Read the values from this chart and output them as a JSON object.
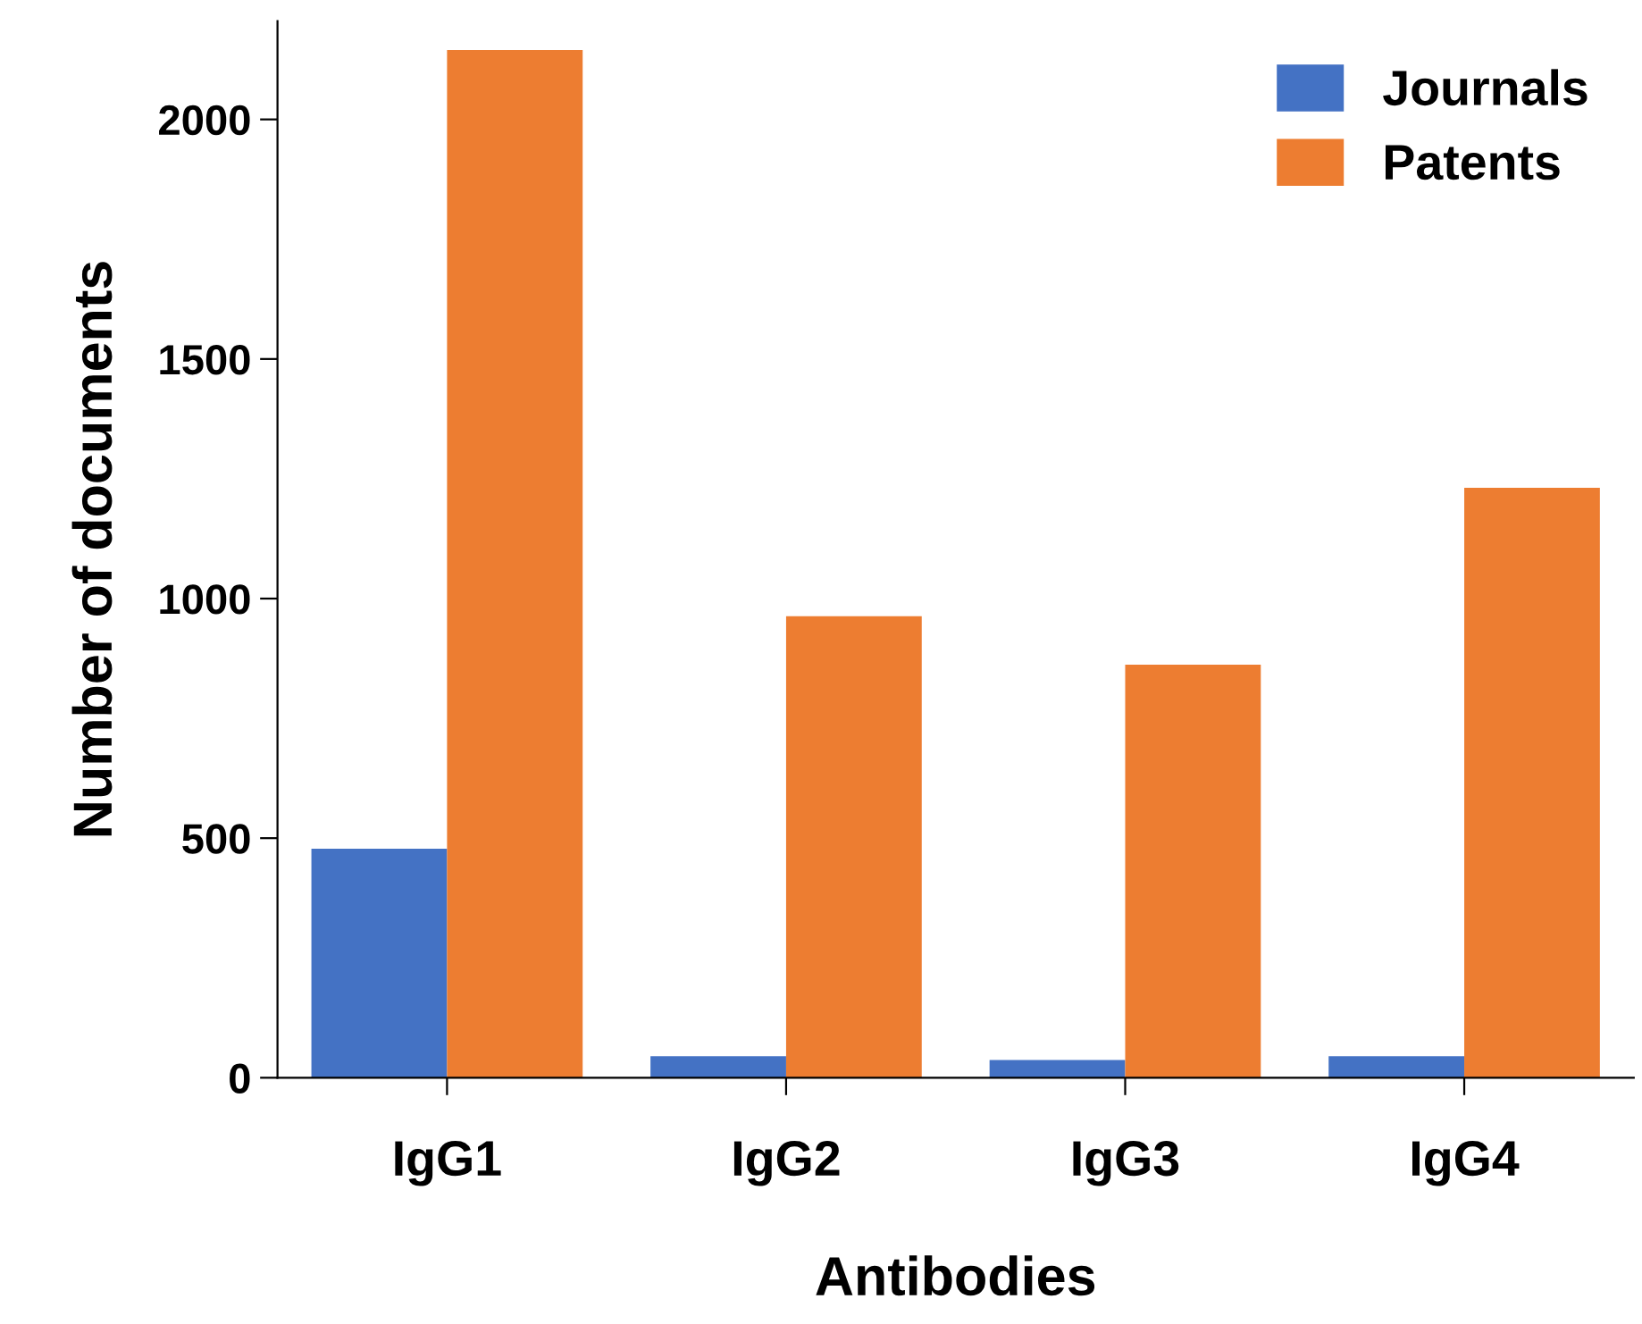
{
  "chart_data": {
    "type": "bar",
    "xlabel": "Antibodies",
    "ylabel": "Number of documents",
    "categories": [
      "IgG1",
      "IgG2",
      "IgG3",
      "IgG4"
    ],
    "series": [
      {
        "name": "Journals",
        "color": "#4472c4",
        "values": [
          478,
          45,
          37,
          45
        ]
      },
      {
        "name": "Patents",
        "color": "#ed7d31",
        "values": [
          2145,
          963,
          862,
          1231
        ]
      }
    ],
    "ylim": [
      0,
      2205
    ],
    "yticks": [
      0,
      500,
      1000,
      1500,
      2000
    ],
    "grid": false,
    "legend": "top right"
  }
}
